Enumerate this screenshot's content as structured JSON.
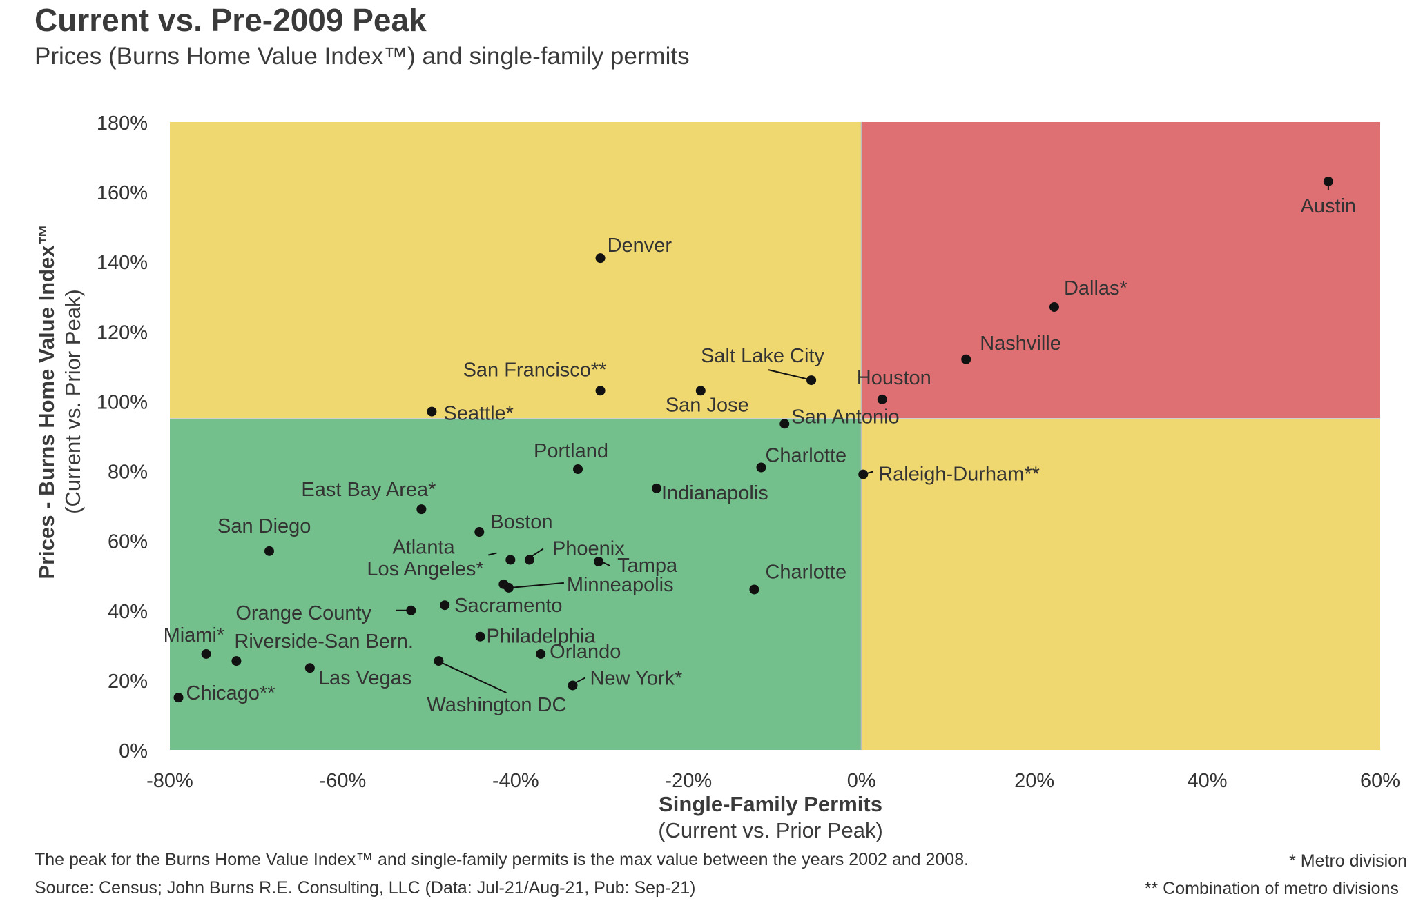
{
  "title": "Current vs. Pre-2009 Peak",
  "subtitle": "Prices (Burns Home Value Index™) and single-family permits",
  "footnote_main": "The peak for the Burns Home Value Index™ and single-family permits is the max value between the years 2002 and 2008.",
  "source": "Source: Census; John Burns R.E. Consulting, LLC (Data: Jul-21/Aug-21, Pub: Sep-21)",
  "note_metro": "* Metro division",
  "note_combo": "** Combination of metro divisions",
  "colors": {
    "yellow": "#f0d870",
    "red": "#de6f72",
    "green": "#74c08c",
    "dot": "#111111"
  },
  "chart_data": {
    "type": "scatter",
    "title": "Current vs. Pre-2009 Peak",
    "subtitle": "Prices (Burns Home Value Index™) and single-family permits",
    "xlabel": "Single-Family Permits",
    "xlabel_sub": "(Current vs. Prior Peak)",
    "ylabel": "Prices - Burns Home Value Index™",
    "ylabel_sub": "(Current vs. Prior Peak)",
    "xlim": [
      -80,
      60
    ],
    "ylim": [
      0,
      180
    ],
    "x_ticks": [
      -80,
      -60,
      -40,
      -20,
      0,
      20,
      40,
      60
    ],
    "x_tick_labels": [
      "-80%",
      "-60%",
      "-40%",
      "-20%",
      "0%",
      "20%",
      "40%",
      "60%"
    ],
    "y_ticks": [
      0,
      20,
      40,
      60,
      80,
      100,
      120,
      140,
      160,
      180
    ],
    "y_tick_labels": [
      "0%",
      "20%",
      "40%",
      "60%",
      "80%",
      "100%",
      "120%",
      "140%",
      "160%",
      "180%"
    ],
    "quadrant_divider": {
      "x": 0,
      "y": 95
    },
    "quadrant_colors": {
      "upper_left": "yellow",
      "upper_right": "red",
      "lower_left": "green",
      "lower_right": "yellow"
    },
    "points": [
      {
        "label": "Austin",
        "x": 54.0,
        "y": 163
      },
      {
        "label": "Dallas*",
        "x": 22.3,
        "y": 127
      },
      {
        "label": "Nashville",
        "x": 12.1,
        "y": 112
      },
      {
        "label": "Houston",
        "x": 2.4,
        "y": 100.5
      },
      {
        "label": "Raleigh-Durham**",
        "x": 0.2,
        "y": 79
      },
      {
        "label": "Denver",
        "x": -30.2,
        "y": 141
      },
      {
        "label": "Salt Lake City",
        "x": -5.8,
        "y": 106
      },
      {
        "label": "San Francisco**",
        "x": -30.2,
        "y": 103
      },
      {
        "label": "San Jose",
        "x": -18.6,
        "y": 103
      },
      {
        "label": "San Antonio",
        "x": -8.9,
        "y": 93.5
      },
      {
        "label": "Seattle*",
        "x": -49.7,
        "y": 97
      },
      {
        "label": "Portland",
        "x": -32.8,
        "y": 80.5
      },
      {
        "label": "Charlotte",
        "x": -11.6,
        "y": 81
      },
      {
        "label": "Indianapolis",
        "x": -23.7,
        "y": 75
      },
      {
        "label": "East Bay Area*",
        "x": -50.9,
        "y": 69
      },
      {
        "label": "San Diego",
        "x": -68.5,
        "y": 57
      },
      {
        "label": "Boston",
        "x": -44.2,
        "y": 62.5
      },
      {
        "label": "Atlanta",
        "x": -40.6,
        "y": 54.5
      },
      {
        "label": "Phoenix",
        "x": -38.4,
        "y": 54.5
      },
      {
        "label": "Tampa",
        "x": -30.4,
        "y": 54
      },
      {
        "label": "Los Angeles*",
        "x": -41.4,
        "y": 47.5
      },
      {
        "label": "Minneapolis",
        "x": -40.8,
        "y": 46.5
      },
      {
        "label": "Charlotte",
        "x": -12.4,
        "y": 46
      },
      {
        "label": "Orange County",
        "x": -52.1,
        "y": 40
      },
      {
        "label": "Sacramento",
        "x": -48.2,
        "y": 41.5
      },
      {
        "label": "Philadelphia",
        "x": -44.1,
        "y": 32.5
      },
      {
        "label": "Orlando",
        "x": -37.1,
        "y": 27.5
      },
      {
        "label": "Miami*",
        "x": -75.8,
        "y": 27.5
      },
      {
        "label": "Riverside-San Bern.",
        "x": -72.3,
        "y": 25.5
      },
      {
        "label": "Las Vegas",
        "x": -63.8,
        "y": 23.5
      },
      {
        "label": "Washington DC",
        "x": -48.9,
        "y": 25.5
      },
      {
        "label": "New York*",
        "x": -33.4,
        "y": 18.5
      },
      {
        "label": "Chicago**",
        "x": -79.0,
        "y": 15
      }
    ]
  }
}
